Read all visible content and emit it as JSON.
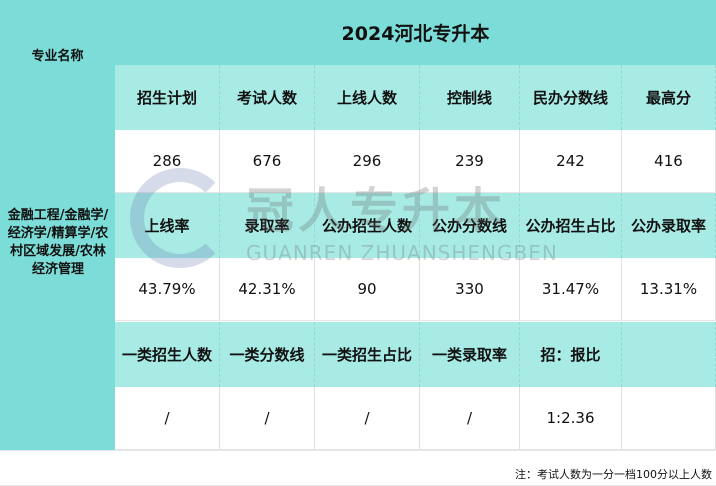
{
  "title": "2024河北专升本",
  "major_header": "专业名称",
  "major": "金融工程/金融学/经济学/精算学/农村区域发展/农林经济管理",
  "rows": [
    {
      "headers": [
        "招生计划",
        "考试人数",
        "上线人数",
        "控制线",
        "民办分数线",
        "最高分"
      ],
      "values": [
        "286",
        "676",
        "296",
        "239",
        "242",
        "416"
      ]
    },
    {
      "headers": [
        "上线率",
        "录取率",
        "公办招生人数",
        "公办分数线",
        "公办招生占比",
        "公办录取率"
      ],
      "values": [
        "43.79%",
        "42.31%",
        "90",
        "330",
        "31.47%",
        "13.31%"
      ]
    },
    {
      "headers": [
        "一类招生人数",
        "一类分数线",
        "一类招生占比",
        "一类录取率",
        "招：报比",
        ""
      ],
      "values": [
        "/",
        "/",
        "/",
        "/",
        "1:2.36",
        ""
      ]
    }
  ],
  "note": "注：考试人数为一分一档100分以上人数",
  "watermark": {
    "cn": "冠人专升本",
    "en": "GUANREN ZHUANSHENGBEN"
  }
}
